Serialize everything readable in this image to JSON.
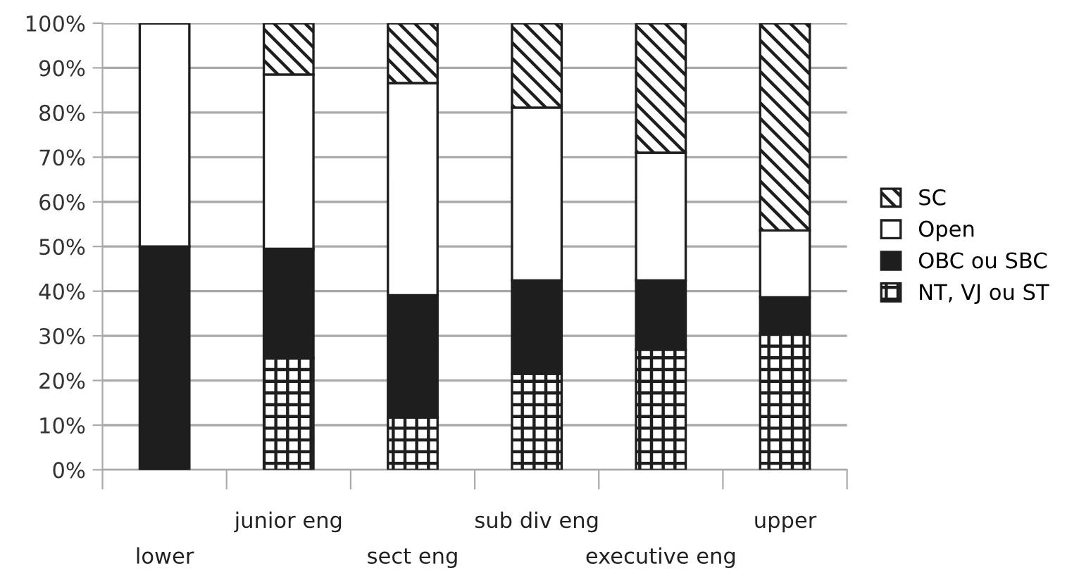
{
  "chart_data": {
    "type": "bar",
    "stacked": true,
    "categories": [
      "lower",
      "junior eng",
      "sect eng",
      "sub div eng",
      "executive eng",
      "upper"
    ],
    "series": [
      {
        "name": "NT, VJ ou ST",
        "color": "#1e1e1e",
        "values": [
          0,
          25,
          11.7,
          21.5,
          26.9,
          30.5
        ]
      },
      {
        "name": "OBC ou SBC",
        "color": "#1e1e1e",
        "values": [
          50,
          24.5,
          27.4,
          20.9,
          15.5,
          8.1
        ]
      },
      {
        "name": "Open",
        "color": "#ffffff",
        "values": [
          50,
          39,
          47.5,
          38.7,
          28.6,
          15
        ]
      },
      {
        "name": "SC",
        "color": "#1e1e1e",
        "values": [
          0,
          11.5,
          13.4,
          18.9,
          29,
          46.4
        ]
      }
    ],
    "ylim": [
      0,
      100
    ],
    "yticks": [
      {
        "value": 0,
        "label": "0%"
      },
      {
        "value": 10,
        "label": "10%"
      },
      {
        "value": 20,
        "label": "20%"
      },
      {
        "value": 30,
        "label": "30%"
      },
      {
        "value": 40,
        "label": "40%"
      },
      {
        "value": 50,
        "label": "50%"
      },
      {
        "value": 60,
        "label": "60%"
      },
      {
        "value": 70,
        "label": "70%"
      },
      {
        "value": 80,
        "label": "80%"
      },
      {
        "value": 90,
        "label": "90%"
      },
      {
        "value": 100,
        "label": "100%"
      }
    ],
    "grid": "y",
    "legend": "right"
  }
}
